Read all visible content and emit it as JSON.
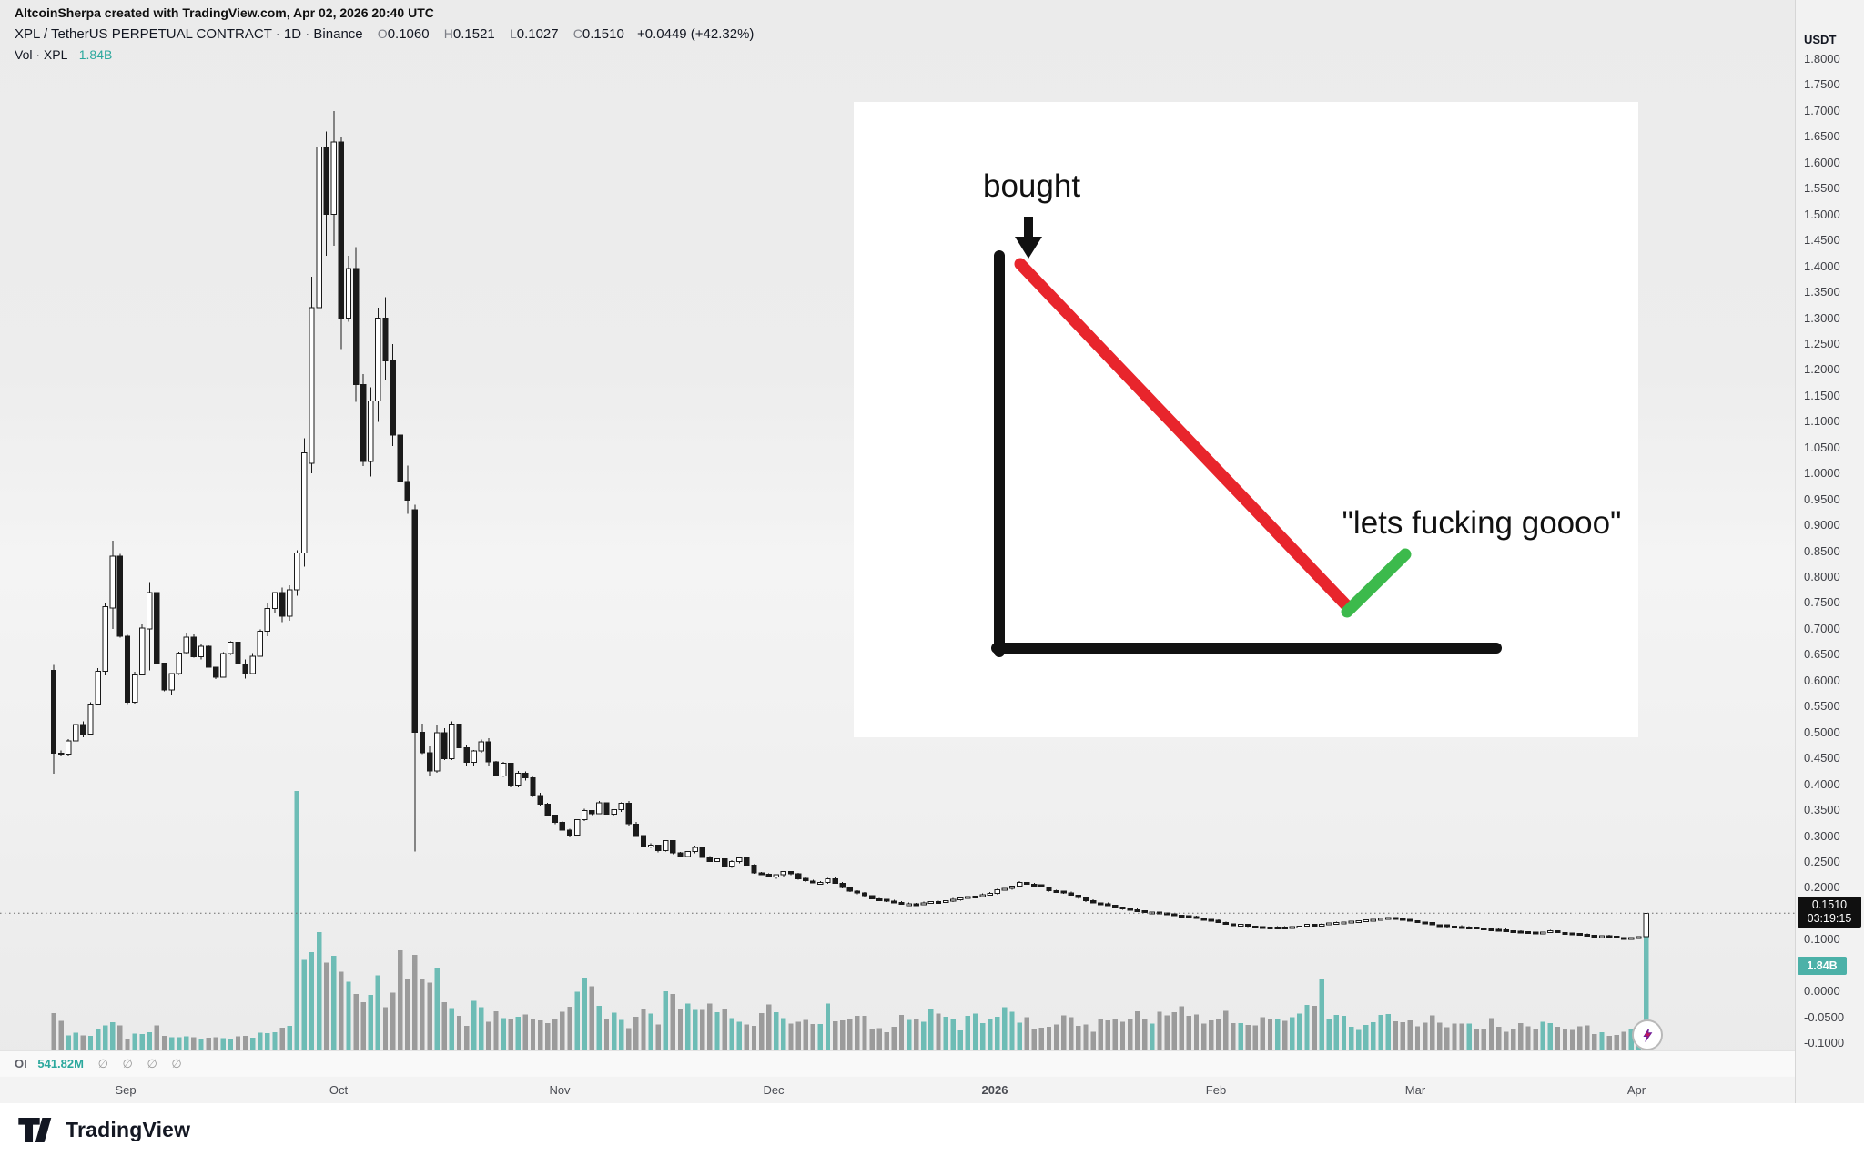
{
  "header": {
    "attribution": "AltcoinSherpa created with TradingView.com, Apr 02, 2026 20:40 UTC",
    "symbol_line": {
      "title": "XPL / TetherUS PERPETUAL CONTRACT · 1D · Binance",
      "o_label": "O",
      "o": "0.1060",
      "h_label": "H",
      "h": "0.1521",
      "l_label": "L",
      "l": "0.1027",
      "c_label": "C",
      "c": "0.1510",
      "change": "+0.0449 (+42.32%)"
    },
    "volume_line": {
      "label": "Vol · XPL",
      "value": "1.84B"
    }
  },
  "meme": {
    "bought": "bought",
    "quote": "\"lets fucking goooo\""
  },
  "oi_row": {
    "label": "OI",
    "value": "541.82M",
    "empties": "∅ ∅ ∅ ∅"
  },
  "price_axis": {
    "unit": "USDT",
    "last_price_label": "0.1510",
    "countdown": "03:19:15",
    "volume_badge": "1.84B"
  },
  "footer": {
    "brand": "TradingView"
  },
  "colors": {
    "up": "#ffffff",
    "down": "#1a1a1a",
    "wick": "#1a1a1a",
    "vol_up": "#57b4ab",
    "vol_down": "#8d8d8d",
    "teal_text": "#2ba89d",
    "price_badge_bg": "#101010",
    "vol_badge_bg": "#4cb1a8",
    "meme_red": "#e8252c",
    "meme_green": "#3cba4c",
    "meme_black": "#111111"
  },
  "chart_data": {
    "type": "candlestick",
    "symbol": "XPL / TetherUS PERPETUAL CONTRACT",
    "interval": "1D",
    "exchange": "Binance",
    "ohlc": {
      "open": 0.106,
      "high": 0.1521,
      "low": 0.1027,
      "close": 0.151,
      "change": 0.0449,
      "change_pct": 42.32
    },
    "volume_current": "1.84B",
    "open_interest": "541.82M",
    "y_axis": {
      "unit": "USDT",
      "min": -0.1,
      "max": 1.8,
      "tick_step": 0.05,
      "last_price": 0.151,
      "volume_badge_price": 0.05
    },
    "x_axis": {
      "labels": [
        {
          "label": "Sep",
          "i": 9.8
        },
        {
          "label": "Oct",
          "i": 38.7
        },
        {
          "label": "Nov",
          "i": 68.7
        },
        {
          "label": "Dec",
          "i": 97.7
        },
        {
          "label": "2026",
          "i": 127.7,
          "year": true
        },
        {
          "label": "Feb",
          "i": 157.6
        },
        {
          "label": "Mar",
          "i": 184.7
        },
        {
          "label": "Apr",
          "i": 214.7
        }
      ]
    },
    "candles_total": 217,
    "price_path": [
      [
        0,
        0.55
      ],
      [
        1,
        0.46
      ],
      [
        2,
        0.48
      ],
      [
        3,
        0.52
      ],
      [
        4,
        0.5
      ],
      [
        5,
        0.56
      ],
      [
        6,
        0.62
      ],
      [
        7,
        0.74
      ],
      [
        8,
        0.84
      ],
      [
        9,
        0.68
      ],
      [
        10,
        0.56
      ],
      [
        11,
        0.61
      ],
      [
        12,
        0.7
      ],
      [
        13,
        0.77
      ],
      [
        14,
        0.63
      ],
      [
        15,
        0.58
      ],
      [
        16,
        0.62
      ],
      [
        17,
        0.66
      ],
      [
        18,
        0.69
      ],
      [
        19,
        0.64
      ],
      [
        20,
        0.66
      ],
      [
        21,
        0.63
      ],
      [
        22,
        0.61
      ],
      [
        23,
        0.65
      ],
      [
        24,
        0.67
      ],
      [
        25,
        0.63
      ],
      [
        26,
        0.61
      ],
      [
        27,
        0.65
      ],
      [
        28,
        0.7
      ],
      [
        29,
        0.74
      ],
      [
        30,
        0.77
      ],
      [
        31,
        0.72
      ],
      [
        32,
        0.78
      ],
      [
        33,
        0.86
      ],
      [
        34,
        1.02
      ],
      [
        35,
        1.32
      ],
      [
        36,
        1.63
      ],
      [
        37,
        1.5
      ],
      [
        38,
        1.64
      ],
      [
        39,
        1.3
      ],
      [
        40,
        1.42
      ],
      [
        41,
        1.16
      ],
      [
        42,
        1.04
      ],
      [
        43,
        1.14
      ],
      [
        44,
        1.3
      ],
      [
        45,
        1.2
      ],
      [
        46,
        1.08
      ],
      [
        47,
        0.97
      ],
      [
        48,
        0.94
      ],
      [
        49,
        0.5
      ],
      [
        50,
        0.46
      ],
      [
        51,
        0.43
      ],
      [
        52,
        0.5
      ],
      [
        53,
        0.45
      ],
      [
        54,
        0.52
      ],
      [
        55,
        0.47
      ],
      [
        56,
        0.44
      ],
      [
        57,
        0.46
      ],
      [
        58,
        0.48
      ],
      [
        59,
        0.44
      ],
      [
        60,
        0.42
      ],
      [
        61,
        0.44
      ],
      [
        62,
        0.4
      ],
      [
        63,
        0.42
      ],
      [
        64,
        0.41
      ],
      [
        65,
        0.38
      ],
      [
        66,
        0.36
      ],
      [
        67,
        0.34
      ],
      [
        68,
        0.33
      ],
      [
        69,
        0.31
      ],
      [
        70,
        0.3
      ],
      [
        71,
        0.33
      ],
      [
        72,
        0.35
      ],
      [
        73,
        0.34
      ],
      [
        74,
        0.36
      ],
      [
        75,
        0.34
      ],
      [
        76,
        0.35
      ],
      [
        77,
        0.36
      ],
      [
        78,
        0.32
      ],
      [
        79,
        0.3
      ],
      [
        80,
        0.28
      ],
      [
        81,
        0.285
      ],
      [
        82,
        0.27
      ],
      [
        83,
        0.29
      ],
      [
        84,
        0.27
      ],
      [
        85,
        0.26
      ],
      [
        86,
        0.27
      ],
      [
        87,
        0.28
      ],
      [
        88,
        0.26
      ],
      [
        89,
        0.25
      ],
      [
        90,
        0.255
      ],
      [
        91,
        0.24
      ],
      [
        92,
        0.25
      ],
      [
        93,
        0.26
      ],
      [
        94,
        0.245
      ],
      [
        95,
        0.23
      ],
      [
        96,
        0.225
      ],
      [
        97,
        0.22
      ],
      [
        99,
        0.23
      ],
      [
        101,
        0.22
      ],
      [
        103,
        0.21
      ],
      [
        105,
        0.215
      ],
      [
        107,
        0.2
      ],
      [
        109,
        0.19
      ],
      [
        111,
        0.18
      ],
      [
        113,
        0.175
      ],
      [
        115,
        0.17
      ],
      [
        117,
        0.168
      ],
      [
        119,
        0.172
      ],
      [
        121,
        0.176
      ],
      [
        123,
        0.182
      ],
      [
        125,
        0.186
      ],
      [
        127,
        0.19
      ],
      [
        129,
        0.2
      ],
      [
        131,
        0.21
      ],
      [
        133,
        0.205
      ],
      [
        135,
        0.196
      ],
      [
        137,
        0.19
      ],
      [
        139,
        0.18
      ],
      [
        141,
        0.172
      ],
      [
        143,
        0.165
      ],
      [
        145,
        0.16
      ],
      [
        147,
        0.156
      ],
      [
        149,
        0.152
      ],
      [
        151,
        0.149
      ],
      [
        153,
        0.146
      ],
      [
        155,
        0.141
      ],
      [
        157,
        0.137
      ],
      [
        159,
        0.131
      ],
      [
        161,
        0.128
      ],
      [
        163,
        0.126
      ],
      [
        165,
        0.122
      ],
      [
        167,
        0.124
      ],
      [
        169,
        0.127
      ],
      [
        171,
        0.129
      ],
      [
        173,
        0.132
      ],
      [
        175,
        0.134
      ],
      [
        177,
        0.136
      ],
      [
        179,
        0.139
      ],
      [
        181,
        0.142
      ],
      [
        183,
        0.138
      ],
      [
        185,
        0.134
      ],
      [
        187,
        0.129
      ],
      [
        189,
        0.126
      ],
      [
        191,
        0.124
      ],
      [
        193,
        0.122
      ],
      [
        195,
        0.12
      ],
      [
        197,
        0.117
      ],
      [
        199,
        0.115
      ],
      [
        201,
        0.114
      ],
      [
        203,
        0.117
      ],
      [
        205,
        0.113
      ],
      [
        207,
        0.11
      ],
      [
        209,
        0.108
      ],
      [
        211,
        0.106
      ],
      [
        213,
        0.104
      ],
      [
        215,
        0.105
      ],
      [
        216,
        0.151
      ]
    ],
    "vol_profile": [
      [
        0,
        0.14
      ],
      [
        2,
        0.06
      ],
      [
        4,
        0.05
      ],
      [
        6,
        0.07
      ],
      [
        8,
        0.11
      ],
      [
        10,
        0.05
      ],
      [
        12,
        0.06
      ],
      [
        14,
        0.08
      ],
      [
        16,
        0.04
      ],
      [
        18,
        0.05
      ],
      [
        20,
        0.04
      ],
      [
        22,
        0.05
      ],
      [
        24,
        0.04
      ],
      [
        26,
        0.05
      ],
      [
        28,
        0.06
      ],
      [
        30,
        0.07
      ],
      [
        32,
        0.09
      ],
      [
        33,
        1.0
      ],
      [
        34,
        0.42
      ],
      [
        35,
        0.34
      ],
      [
        36,
        0.4
      ],
      [
        37,
        0.3
      ],
      [
        38,
        0.34
      ],
      [
        39,
        0.26
      ],
      [
        40,
        0.22
      ],
      [
        41,
        0.19
      ],
      [
        42,
        0.17
      ],
      [
        43,
        0.22
      ],
      [
        44,
        0.26
      ],
      [
        45,
        0.2
      ],
      [
        46,
        0.24
      ],
      [
        47,
        0.33
      ],
      [
        48,
        0.27
      ],
      [
        49,
        0.36
      ],
      [
        50,
        0.31
      ],
      [
        51,
        0.25
      ],
      [
        52,
        0.28
      ],
      [
        53,
        0.22
      ],
      [
        54,
        0.18
      ],
      [
        55,
        0.14
      ],
      [
        56,
        0.11
      ],
      [
        57,
        0.16
      ],
      [
        58,
        0.19
      ],
      [
        59,
        0.13
      ],
      [
        60,
        0.15
      ],
      [
        62,
        0.11
      ],
      [
        64,
        0.13
      ],
      [
        66,
        0.1
      ],
      [
        68,
        0.12
      ],
      [
        70,
        0.14
      ],
      [
        71,
        0.25
      ],
      [
        72,
        0.29
      ],
      [
        73,
        0.21
      ],
      [
        74,
        0.15
      ],
      [
        76,
        0.12
      ],
      [
        78,
        0.1
      ],
      [
        80,
        0.14
      ],
      [
        82,
        0.11
      ],
      [
        83,
        0.21
      ],
      [
        85,
        0.17
      ],
      [
        87,
        0.13
      ],
      [
        89,
        0.18
      ],
      [
        91,
        0.13
      ],
      [
        93,
        0.11
      ],
      [
        95,
        0.09
      ],
      [
        97,
        0.15
      ],
      [
        99,
        0.11
      ],
      [
        101,
        0.13
      ],
      [
        103,
        0.09
      ],
      [
        105,
        0.15
      ],
      [
        107,
        0.11
      ],
      [
        109,
        0.13
      ],
      [
        111,
        0.1
      ],
      [
        113,
        0.08
      ],
      [
        115,
        0.12
      ],
      [
        117,
        0.1
      ],
      [
        119,
        0.14
      ],
      [
        121,
        0.11
      ],
      [
        123,
        0.09
      ],
      [
        125,
        0.13
      ],
      [
        127,
        0.11
      ],
      [
        129,
        0.15
      ],
      [
        131,
        0.12
      ],
      [
        133,
        0.1
      ],
      [
        135,
        0.09
      ],
      [
        137,
        0.12
      ],
      [
        139,
        0.1
      ],
      [
        141,
        0.08
      ],
      [
        143,
        0.12
      ],
      [
        145,
        0.1
      ],
      [
        147,
        0.13
      ],
      [
        149,
        0.11
      ],
      [
        151,
        0.15
      ],
      [
        153,
        0.19
      ],
      [
        155,
        0.12
      ],
      [
        157,
        0.1
      ],
      [
        159,
        0.13
      ],
      [
        161,
        0.1
      ],
      [
        163,
        0.09
      ],
      [
        165,
        0.12
      ],
      [
        167,
        0.1
      ],
      [
        169,
        0.13
      ],
      [
        171,
        0.16
      ],
      [
        172,
        0.23
      ],
      [
        173,
        0.14
      ],
      [
        175,
        0.11
      ],
      [
        177,
        0.09
      ],
      [
        179,
        0.12
      ],
      [
        181,
        0.15
      ],
      [
        183,
        0.12
      ],
      [
        185,
        0.1
      ],
      [
        187,
        0.13
      ],
      [
        189,
        0.1
      ],
      [
        191,
        0.12
      ],
      [
        193,
        0.09
      ],
      [
        195,
        0.11
      ],
      [
        197,
        0.08
      ],
      [
        199,
        0.1
      ],
      [
        201,
        0.08
      ],
      [
        203,
        0.11
      ],
      [
        205,
        0.08
      ],
      [
        207,
        0.1
      ],
      [
        209,
        0.07
      ],
      [
        211,
        0.06
      ],
      [
        213,
        0.07
      ],
      [
        215,
        0.09
      ],
      [
        216,
        0.4
      ]
    ],
    "overrides": {
      "0": [
        0.62,
        0.63,
        0.42,
        0.46
      ],
      "8": [
        0.74,
        0.87,
        0.7,
        0.84
      ],
      "13": [
        0.7,
        0.79,
        0.62,
        0.77
      ],
      "35": [
        1.02,
        1.38,
        1.0,
        1.32
      ],
      "36": [
        1.32,
        1.7,
        1.28,
        1.63
      ],
      "37": [
        1.63,
        1.66,
        1.42,
        1.5
      ],
      "38": [
        1.5,
        1.7,
        1.44,
        1.64
      ],
      "39": [
        1.64,
        1.65,
        1.24,
        1.3
      ],
      "44": [
        1.14,
        1.32,
        1.1,
        1.3
      ],
      "49": [
        0.93,
        0.94,
        0.27,
        0.5
      ],
      "216": [
        0.106,
        0.1521,
        0.1027,
        0.151
      ]
    }
  }
}
